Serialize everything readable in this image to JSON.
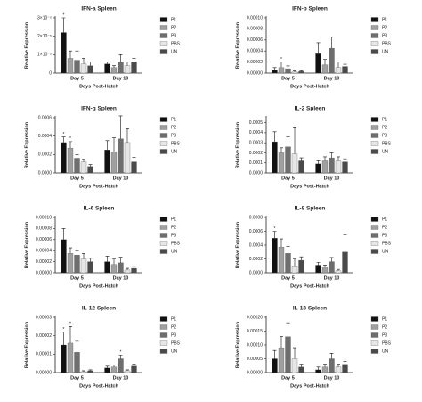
{
  "chart_data": [
    {
      "type": "bar",
      "title": "IFN-a Spleen",
      "ylabel": "Relative Expression",
      "xlabel": "Days Post-Hatch",
      "categories": [
        "Day 5",
        "Day 10"
      ],
      "ylim": [
        0,
        3e-05
      ],
      "yticks": [
        0,
        {
          "value": 1e-05,
          "label": "1×10⁻⁵"
        },
        {
          "value": 2e-05,
          "label": "2×10⁻⁵"
        },
        {
          "value": 3e-05,
          "label": "3×10⁻⁵"
        }
      ],
      "series": [
        {
          "name": "P1",
          "color": "#111111",
          "values": [
            2.2e-05,
            5e-06
          ],
          "errors": [
            8e-06,
            1e-06
          ],
          "annotations": [
            "*",
            null
          ]
        },
        {
          "name": "P2",
          "color": "#a0a0a0",
          "values": [
            8e-06,
            3e-06
          ],
          "errors": [
            4e-06,
            1e-06
          ],
          "annotations": [
            null,
            null
          ]
        },
        {
          "name": "P3",
          "color": "#6e6e6e",
          "values": [
            7e-06,
            6e-06
          ],
          "errors": [
            5e-06,
            4e-06
          ],
          "annotations": [
            null,
            null
          ]
        },
        {
          "name": "PBS",
          "color": "#e6e6e6",
          "values": [
            5e-06,
            4e-06
          ],
          "errors": [
            3e-06,
            2e-06
          ],
          "annotations": [
            null,
            null
          ]
        },
        {
          "name": "UN",
          "color": "#4a4a4a",
          "values": [
            4e-06,
            6e-06
          ],
          "errors": [
            2e-06,
            2e-06
          ],
          "annotations": [
            null,
            null
          ]
        }
      ]
    },
    {
      "type": "bar",
      "title": "IFN-b Spleen",
      "ylabel": "Relative Expression",
      "xlabel": "Days Post-Hatch",
      "categories": [
        "Day 5",
        "Day 10"
      ],
      "ylim": [
        0,
        0.0001
      ],
      "yticks": [
        {
          "value": 0,
          "label": "0.00000"
        },
        {
          "value": 2e-05,
          "label": "0.00002"
        },
        {
          "value": 4e-05,
          "label": "0.00004"
        },
        {
          "value": 6e-05,
          "label": "0.00006"
        },
        {
          "value": 8e-05,
          "label": "0.00008"
        },
        {
          "value": 0.0001,
          "label": "0.00010"
        }
      ],
      "series": [
        {
          "name": "P1",
          "color": "#111111",
          "values": [
            5e-06,
            3.5e-05
          ],
          "errors": [
            5e-06,
            2e-05
          ],
          "annotations": [
            null,
            null
          ]
        },
        {
          "name": "P2",
          "color": "#a0a0a0",
          "values": [
            1e-05,
            1.5e-05
          ],
          "errors": [
            1e-05,
            1e-05
          ],
          "annotations": [
            "*",
            null
          ]
        },
        {
          "name": "P3",
          "color": "#6e6e6e",
          "values": [
            8e-06,
            4.5e-05
          ],
          "errors": [
            5e-06,
            2e-05
          ],
          "annotations": [
            null,
            null
          ]
        },
        {
          "name": "PBS",
          "color": "#e6e6e6",
          "values": [
            2e-06,
            1e-05
          ],
          "errors": [
            2e-06,
            1e-05
          ],
          "annotations": [
            null,
            null
          ]
        },
        {
          "name": "UN",
          "color": "#4a4a4a",
          "values": [
            3e-06,
            1.2e-05
          ],
          "errors": [
            1e-06,
            4e-06
          ],
          "annotations": [
            null,
            null
          ]
        }
      ]
    },
    {
      "type": "bar",
      "title": "IFN-g Spleen",
      "ylabel": "Relative Expression",
      "xlabel": "Days Post-Hatch",
      "categories": [
        "Day 5",
        "Day 10"
      ],
      "ylim": [
        0,
        0.0006
      ],
      "yticks": [
        {
          "value": 0,
          "label": "0.0000"
        },
        {
          "value": 0.0002,
          "label": "0.0002"
        },
        {
          "value": 0.0004,
          "label": "0.0004"
        },
        {
          "value": 0.0006,
          "label": "0.0006"
        }
      ],
      "series": [
        {
          "name": "P1",
          "color": "#111111",
          "values": [
            0.00033,
            0.00025
          ],
          "errors": [
            6e-05,
            0.0001
          ],
          "annotations": [
            "*",
            null
          ]
        },
        {
          "name": "P2",
          "color": "#a0a0a0",
          "values": [
            0.00027,
            0.00023
          ],
          "errors": [
            7e-05,
            0.00015
          ],
          "annotations": [
            "*",
            null
          ]
        },
        {
          "name": "P3",
          "color": "#6e6e6e",
          "values": [
            0.00016,
            0.00037
          ],
          "errors": [
            4e-05,
            0.00025
          ],
          "annotations": [
            null,
            null
          ]
        },
        {
          "name": "PBS",
          "color": "#e6e6e6",
          "values": [
            0.00012,
            0.00033
          ],
          "errors": [
            3e-05,
            0.00015
          ],
          "annotations": [
            null,
            null
          ]
        },
        {
          "name": "UN",
          "color": "#4a4a4a",
          "values": [
            7e-05,
            0.00012
          ],
          "errors": [
            2e-05,
            5e-05
          ],
          "annotations": [
            null,
            null
          ]
        }
      ]
    },
    {
      "type": "bar",
      "title": "IL-2 Spleen",
      "ylabel": "Relative Expression",
      "xlabel": "Days Post-Hatch",
      "categories": [
        "Day 5",
        "Day 10"
      ],
      "ylim": [
        0,
        0.00055
      ],
      "yticks": [
        {
          "value": 0,
          "label": "0.0000"
        },
        {
          "value": 0.0001,
          "label": "0.0001"
        },
        {
          "value": 0.0002,
          "label": "0.0002"
        },
        {
          "value": 0.0003,
          "label": "0.0003"
        },
        {
          "value": 0.0004,
          "label": "0.0004"
        },
        {
          "value": 0.0005,
          "label": "0.0005"
        }
      ],
      "series": [
        {
          "name": "P1",
          "color": "#111111",
          "values": [
            0.00031,
            9e-05
          ],
          "errors": [
            0.0001,
            3e-05
          ],
          "annotations": [
            null,
            null
          ]
        },
        {
          "name": "P2",
          "color": "#a0a0a0",
          "values": [
            0.0002,
            0.00012
          ],
          "errors": [
            5e-05,
            4e-05
          ],
          "annotations": [
            null,
            null
          ]
        },
        {
          "name": "P3",
          "color": "#6e6e6e",
          "values": [
            0.00026,
            0.00015
          ],
          "errors": [
            0.0001,
            5e-05
          ],
          "annotations": [
            null,
            null
          ]
        },
        {
          "name": "PBS",
          "color": "#e6e6e6",
          "values": [
            0.00019,
            0.00012
          ],
          "errors": [
            0.00026,
            4e-05
          ],
          "annotations": [
            null,
            null
          ]
        },
        {
          "name": "UN",
          "color": "#4a4a4a",
          "values": [
            0.00012,
            0.00011
          ],
          "errors": [
            3e-05,
            3e-05
          ],
          "annotations": [
            null,
            null
          ]
        }
      ]
    },
    {
      "type": "bar",
      "title": "IL-6 Spleen",
      "ylabel": "Relative Expression",
      "xlabel": "Days Post-Hatch",
      "categories": [
        "Day 5",
        "Day 10"
      ],
      "ylim": [
        0,
        0.0001
      ],
      "yticks": [
        {
          "value": 0,
          "label": "0.00000"
        },
        {
          "value": 2e-05,
          "label": "0.00002"
        },
        {
          "value": 4e-05,
          "label": "0.00004"
        },
        {
          "value": 6e-05,
          "label": "0.00006"
        },
        {
          "value": 8e-05,
          "label": "0.00008"
        },
        {
          "value": 0.0001,
          "label": "0.00010"
        }
      ],
      "series": [
        {
          "name": "P1",
          "color": "#111111",
          "values": [
            6e-05,
            2e-05
          ],
          "errors": [
            2e-05,
            1e-05
          ],
          "annotations": [
            null,
            null
          ]
        },
        {
          "name": "P2",
          "color": "#a0a0a0",
          "values": [
            3.5e-05,
            1.5e-05
          ],
          "errors": [
            1e-05,
            1e-05
          ],
          "annotations": [
            null,
            null
          ]
        },
        {
          "name": "P3",
          "color": "#6e6e6e",
          "values": [
            3.2e-05,
            1.8e-05
          ],
          "errors": [
            8e-06,
            1e-05
          ],
          "annotations": [
            null,
            null
          ]
        },
        {
          "name": "PBS",
          "color": "#e6e6e6",
          "values": [
            2.5e-05,
            5e-06
          ],
          "errors": [
            1e-05,
            3e-06
          ],
          "annotations": [
            null,
            null
          ]
        },
        {
          "name": "UN",
          "color": "#4a4a4a",
          "values": [
            2e-05,
            8e-06
          ],
          "errors": [
            6e-06,
            3e-06
          ],
          "annotations": [
            null,
            null
          ]
        }
      ]
    },
    {
      "type": "bar",
      "title": "IL-8 Spleen",
      "ylabel": "Relative Expression",
      "xlabel": "Days Post-Hatch",
      "categories": [
        "Day 5",
        "Day 10"
      ],
      "ylim": [
        0,
        0.0008
      ],
      "yticks": [
        {
          "value": 0,
          "label": "0.0000"
        },
        {
          "value": 0.0002,
          "label": "0.0002"
        },
        {
          "value": 0.0004,
          "label": "0.0004"
        },
        {
          "value": 0.0006,
          "label": "0.0006"
        },
        {
          "value": 0.0008,
          "label": "0.0008"
        }
      ],
      "series": [
        {
          "name": "P1",
          "color": "#111111",
          "values": [
            0.0005,
            0.00011
          ],
          "errors": [
            0.0001,
            4e-05
          ],
          "annotations": [
            "*",
            null
          ]
        },
        {
          "name": "P2",
          "color": "#a0a0a0",
          "values": [
            0.00037,
            8e-05
          ],
          "errors": [
            0.00012,
            3e-05
          ],
          "annotations": [
            null,
            null
          ]
        },
        {
          "name": "P3",
          "color": "#6e6e6e",
          "values": [
            0.00028,
            0.00016
          ],
          "errors": [
            0.0001,
            6e-05
          ],
          "annotations": [
            null,
            null
          ]
        },
        {
          "name": "PBS",
          "color": "#e6e6e6",
          "values": [
            0.0001,
            3e-05
          ],
          "errors": [
            0.0001,
            2e-05
          ],
          "annotations": [
            null,
            null
          ]
        },
        {
          "name": "UN",
          "color": "#4a4a4a",
          "values": [
            0.00018,
            0.0003
          ],
          "errors": [
            5e-05,
            0.00025
          ],
          "annotations": [
            null,
            null
          ]
        }
      ]
    },
    {
      "type": "bar",
      "title": "IL-12 Spleen",
      "ylabel": "Relative Expression",
      "xlabel": "Days Post-Hatch",
      "categories": [
        "Day 5",
        "Day 10"
      ],
      "ylim": [
        0,
        3e-05
      ],
      "yticks": [
        {
          "value": 0,
          "label": "0.00000"
        },
        {
          "value": 1e-05,
          "label": "0.00001"
        },
        {
          "value": 2e-05,
          "label": "0.00002"
        },
        {
          "value": 3e-05,
          "label": "0.00003"
        }
      ],
      "series": [
        {
          "name": "P1",
          "color": "#111111",
          "values": [
            1.5e-05,
            2.5e-06
          ],
          "errors": [
            7e-06,
            1e-06
          ],
          "annotations": [
            "*",
            null
          ]
        },
        {
          "name": "P2",
          "color": "#a0a0a0",
          "values": [
            1.6e-05,
            3e-06
          ],
          "errors": [
            9e-06,
            1e-06
          ],
          "annotations": [
            "*",
            null
          ]
        },
        {
          "name": "P3",
          "color": "#6e6e6e",
          "values": [
            1.1e-05,
            7.5e-06
          ],
          "errors": [
            6e-06,
            2e-06
          ],
          "annotations": [
            null,
            "*"
          ]
        },
        {
          "name": "PBS",
          "color": "#e6e6e6",
          "values": [
            5e-07,
            1e-06
          ],
          "errors": [
            5e-07,
            5e-07
          ],
          "annotations": [
            null,
            null
          ]
        },
        {
          "name": "UN",
          "color": "#4a4a4a",
          "values": [
            1e-06,
            3.5e-06
          ],
          "errors": [
            5e-07,
            1e-06
          ],
          "annotations": [
            null,
            null
          ]
        }
      ]
    },
    {
      "type": "bar",
      "title": "IL-13 Spleen",
      "ylabel": "Relative Expression",
      "xlabel": "Days Post-Hatch",
      "categories": [
        "Day 5",
        "Day 10"
      ],
      "ylim": [
        0,
        0.0002
      ],
      "yticks": [
        {
          "value": 0,
          "label": "0.00000"
        },
        {
          "value": 5e-05,
          "label": "0.00005"
        },
        {
          "value": 0.0001,
          "label": "0.00010"
        },
        {
          "value": 0.00015,
          "label": "0.00015"
        },
        {
          "value": 0.0002,
          "label": "0.00020"
        }
      ],
      "series": [
        {
          "name": "P1",
          "color": "#111111",
          "values": [
            5e-05,
            1e-05
          ],
          "errors": [
            3e-05,
            1e-05
          ],
          "annotations": [
            null,
            null
          ]
        },
        {
          "name": "P2",
          "color": "#a0a0a0",
          "values": [
            9e-05,
            2e-05
          ],
          "errors": [
            4e-05,
            1e-05
          ],
          "annotations": [
            null,
            null
          ]
        },
        {
          "name": "P3",
          "color": "#6e6e6e",
          "values": [
            0.00013,
            5e-05
          ],
          "errors": [
            5e-05,
            2e-05
          ],
          "annotations": [
            null,
            null
          ]
        },
        {
          "name": "PBS",
          "color": "#e6e6e6",
          "values": [
            5e-05,
            2e-05
          ],
          "errors": [
            4e-05,
            1e-05
          ],
          "annotations": [
            null,
            null
          ]
        },
        {
          "name": "UN",
          "color": "#4a4a4a",
          "values": [
            2e-05,
            3e-05
          ],
          "errors": [
            1e-05,
            1e-05
          ],
          "annotations": [
            null,
            null
          ]
        }
      ]
    }
  ]
}
